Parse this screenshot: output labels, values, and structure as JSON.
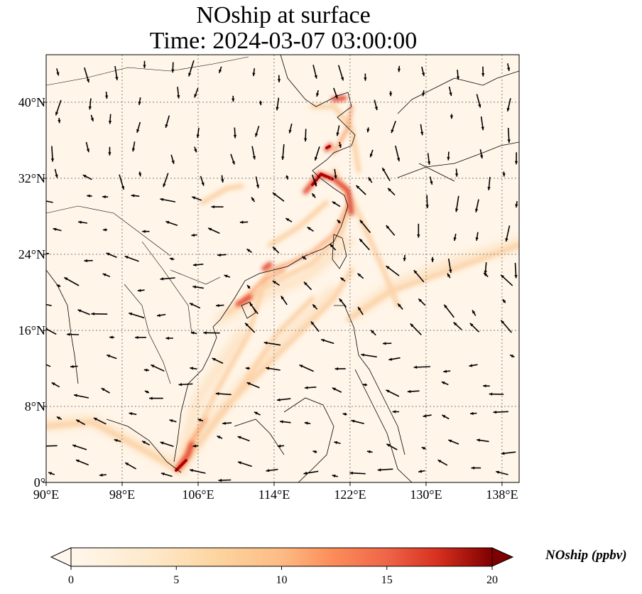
{
  "title": {
    "line1": "NOship at surface",
    "line2": "Time: 2024-03-07 03:00:00"
  },
  "map": {
    "extent": {
      "lon": [
        90,
        139.8
      ],
      "lat": [
        0,
        45
      ]
    },
    "lat_ticks": [
      {
        "value": 0,
        "label": "0°"
      },
      {
        "value": 8,
        "label": "8°N"
      },
      {
        "value": 16,
        "label": "16°N"
      },
      {
        "value": 24,
        "label": "24°N"
      },
      {
        "value": 32,
        "label": "32°N"
      },
      {
        "value": 40,
        "label": "40°N"
      }
    ],
    "lon_ticks": [
      {
        "value": 90,
        "label": "90°E"
      },
      {
        "value": 98,
        "label": "98°E"
      },
      {
        "value": 106,
        "label": "106°E"
      },
      {
        "value": 114,
        "label": "114°E"
      },
      {
        "value": 122,
        "label": "122°E"
      },
      {
        "value": 130,
        "label": "130°E"
      },
      {
        "value": 138,
        "label": "138°E"
      }
    ],
    "gridlines": true,
    "colormap": "OrRd",
    "colors": {
      "low": "#fff7ec",
      "mid": "#fdbb84",
      "high": "#d7301f",
      "max": "#7f0000",
      "coast": "#000000",
      "grid": "#808080"
    }
  },
  "colorbar": {
    "label": "NOship (ppbv)",
    "min": 0,
    "max": 20,
    "ticks": [
      {
        "value": 0,
        "label": "0"
      },
      {
        "value": 5,
        "label": "5"
      },
      {
        "value": 10,
        "label": "10"
      },
      {
        "value": 15,
        "label": "15"
      },
      {
        "value": 20,
        "label": "20"
      }
    ],
    "extend": "both"
  }
}
